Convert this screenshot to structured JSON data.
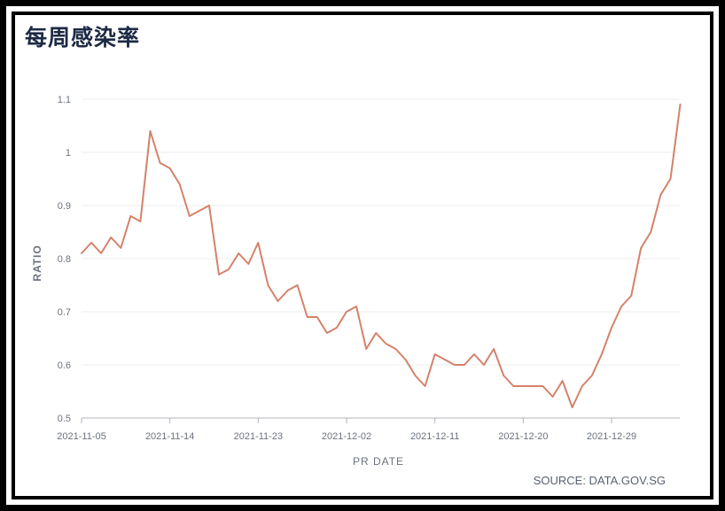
{
  "chart_data": {
    "type": "line",
    "title": "每周感染率",
    "xlabel": "PR DATE",
    "ylabel": "RATIO",
    "source": "SOURCE: DATA.GOV.SG",
    "ylim": [
      0.5,
      1.1
    ],
    "yticks": [
      "0.5",
      "0.6",
      "0.7",
      "0.8",
      "0.9",
      "1",
      "1.1"
    ],
    "xticks": [
      "2021-11-05",
      "2021-11-14",
      "2021-11-23",
      "2021-12-02",
      "2021-12-11",
      "2021-12-20",
      "2021-12-29"
    ],
    "x_start": "2021-11-05",
    "series": [
      {
        "color": "#d4826a",
        "values": [
          0.81,
          0.83,
          0.81,
          0.84,
          0.82,
          0.88,
          0.87,
          1.04,
          0.98,
          0.97,
          0.94,
          0.88,
          0.89,
          0.9,
          0.77,
          0.78,
          0.81,
          0.79,
          0.83,
          0.75,
          0.72,
          0.74,
          0.75,
          0.69,
          0.69,
          0.66,
          0.67,
          0.7,
          0.71,
          0.63,
          0.66,
          0.64,
          0.63,
          0.61,
          0.58,
          0.56,
          0.62,
          0.61,
          0.6,
          0.6,
          0.62,
          0.6,
          0.63,
          0.58,
          0.56,
          0.56,
          0.56,
          0.56,
          0.54,
          0.57,
          0.52,
          0.56,
          0.58,
          0.62,
          0.67,
          0.71,
          0.73,
          0.82,
          0.85,
          0.92,
          0.95,
          1.09
        ]
      }
    ],
    "grid": true
  }
}
